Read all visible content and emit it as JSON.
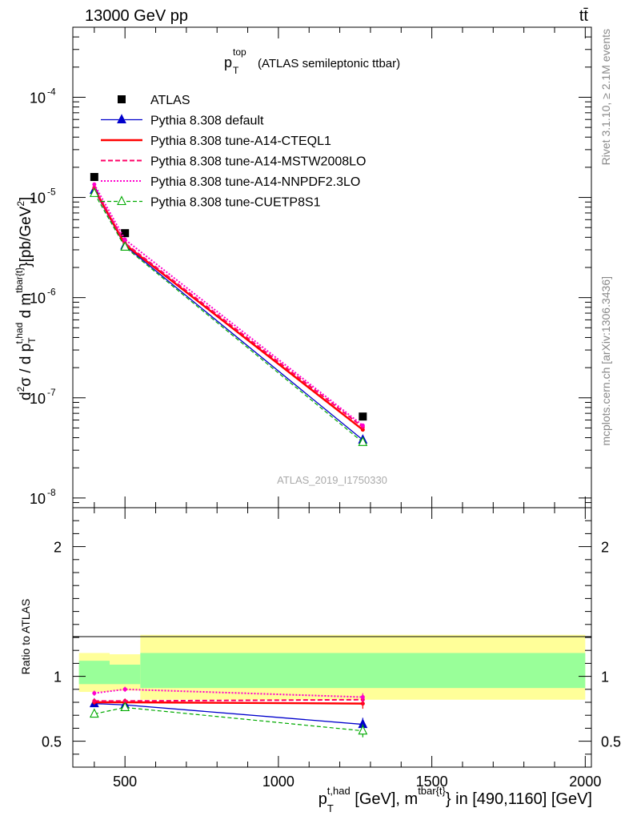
{
  "header": {
    "left": "13000 GeV pp",
    "right": "tt̄",
    "watermark": "ATLAS_2019_I1750330",
    "side_rivet": "Rivet 3.1.10, ≥ 2.1M events",
    "side_mcplots": "mcplots.cern.ch [arXiv:1306.3436]"
  },
  "plot_title": {
    "main": "p",
    "sub": "T",
    "sup": "top",
    "rest": "(ATLAS semileptonic ttbar)"
  },
  "ratio_ylabel": "Ratio to ATLAS",
  "x_axis_label": {
    "p": "p",
    "p_sub": "T",
    "p_sup": "t,had",
    "mid": " [GeV], m",
    "m_sup": "tbar{t}",
    "rest": "} in [490,1160] [GeV]"
  },
  "y_axis_label": {
    "part1": "d",
    "sup2": "2",
    "sigma": "σ / d p",
    "p_sub": "T",
    "p_sup": "t,had",
    "mid": " d m",
    "m_sup": "tbar{t}",
    "rest": "}[pb/GeV",
    "rest_sup": "2",
    "end": "]"
  },
  "legend": [
    {
      "label": "ATLAS"
    },
    {
      "label": "Pythia 8.308 default"
    },
    {
      "label": "Pythia 8.308 tune-A14-CTEQL1"
    },
    {
      "label": "Pythia 8.308 tune-A14-MSTW2008LO"
    },
    {
      "label": "Pythia 8.308 tune-A14-NNPDF2.3LO"
    },
    {
      "label": "Pythia 8.308 tune-CUETP8S1"
    }
  ],
  "colors": {
    "data": "#000000",
    "default": "#0000cc",
    "cteql1": "#ff0000",
    "mstw": "#ff0066",
    "nnpdf": "#ff00cc",
    "cuetp": "#00aa00",
    "band_outer": "#ffff99",
    "band_inner": "#99ff99"
  },
  "chart_data": [
    {
      "type": "line",
      "yscale": "log",
      "xlim": [
        330,
        2020
      ],
      "ylim": [
        8e-09,
        0.0005
      ],
      "x_ticks": [
        500,
        1000,
        1500,
        2000
      ],
      "y_ticks": [
        {
          "value": 1e-08,
          "label": "10",
          "exp": "-8"
        },
        {
          "value": 1e-07,
          "label": "10",
          "exp": "-7"
        },
        {
          "value": 1e-06,
          "label": "10",
          "exp": "-6"
        },
        {
          "value": 1e-05,
          "label": "10",
          "exp": "-5"
        },
        {
          "value": 0.0001,
          "label": "10",
          "exp": "-4"
        }
      ],
      "series": [
        {
          "name": "ATLAS",
          "style": "data",
          "x": [
            400,
            500,
            1275
          ],
          "y": [
            1.6e-05,
            4.4e-06,
            6.5e-08
          ]
        },
        {
          "name": "Pythia 8.308 default",
          "style": "default",
          "x": [
            400,
            500,
            1275
          ],
          "y": [
            1.18e-05,
            3.3e-06,
            3.8e-08
          ]
        },
        {
          "name": "Pythia 8.308 tune-A14-CTEQL1",
          "style": "cteql1",
          "x": [
            400,
            500,
            1275
          ],
          "y": [
            1.22e-05,
            3.4e-06,
            4.8e-08
          ]
        },
        {
          "name": "Pythia 8.308 tune-A14-MSTW2008LO",
          "style": "mstw",
          "x": [
            400,
            500,
            1275
          ],
          "y": [
            1.25e-05,
            3.5e-06,
            5.1e-08
          ]
        },
        {
          "name": "Pythia 8.308 tune-A14-NNPDF2.3LO",
          "style": "nnpdf",
          "x": [
            400,
            500,
            1275
          ],
          "y": [
            1.35e-05,
            3.8e-06,
            5.3e-08
          ]
        },
        {
          "name": "Pythia 8.308 tune-CUETP8S1",
          "style": "cuetp",
          "x": [
            400,
            500,
            1275
          ],
          "y": [
            1.1e-05,
            3.2e-06,
            3.6e-08
          ]
        }
      ]
    },
    {
      "type": "line",
      "ylim": [
        0.3,
        2.3
      ],
      "xlim": [
        330,
        2020
      ],
      "y_ticks": [
        0.5,
        1,
        2
      ],
      "bands": [
        {
          "x0": 350,
          "x1": 450,
          "outer": [
            0.88,
            1.18
          ],
          "inner": [
            0.94,
            1.12
          ]
        },
        {
          "x0": 450,
          "x1": 550,
          "outer": [
            0.89,
            1.17
          ],
          "inner": [
            0.94,
            1.09
          ]
        },
        {
          "x0": 550,
          "x1": 2000,
          "outer": [
            0.82,
            1.32
          ],
          "inner": [
            0.91,
            1.18
          ]
        }
      ],
      "series": [
        {
          "name": "Pythia 8.308 default",
          "style": "default",
          "x": [
            400,
            500,
            1275
          ],
          "y": [
            0.79,
            0.78,
            0.63
          ],
          "err": [
            0.02,
            0.02,
            0.05
          ]
        },
        {
          "name": "Pythia 8.308 tune-A14-CTEQL1",
          "style": "cteql1",
          "x": [
            400,
            500,
            1275
          ],
          "y": [
            0.8,
            0.8,
            0.79
          ],
          "err": [
            0.02,
            0.02,
            0.04
          ]
        },
        {
          "name": "Pythia 8.308 tune-A14-MSTW2008LO",
          "style": "mstw",
          "x": [
            400,
            500,
            1275
          ],
          "y": [
            0.81,
            0.81,
            0.82
          ],
          "err": [
            0.02,
            0.02,
            0.04
          ]
        },
        {
          "name": "Pythia 8.308 tune-A14-NNPDF2.3LO",
          "style": "nnpdf",
          "x": [
            400,
            500,
            1275
          ],
          "y": [
            0.87,
            0.9,
            0.84
          ],
          "err": [
            0.02,
            0.02,
            0.03
          ]
        },
        {
          "name": "Pythia 8.308 tune-CUETP8S1",
          "style": "cuetp",
          "x": [
            400,
            500,
            1275
          ],
          "y": [
            0.71,
            0.76,
            0.58
          ],
          "err": [
            0.02,
            0.02,
            0.05
          ]
        }
      ]
    }
  ]
}
